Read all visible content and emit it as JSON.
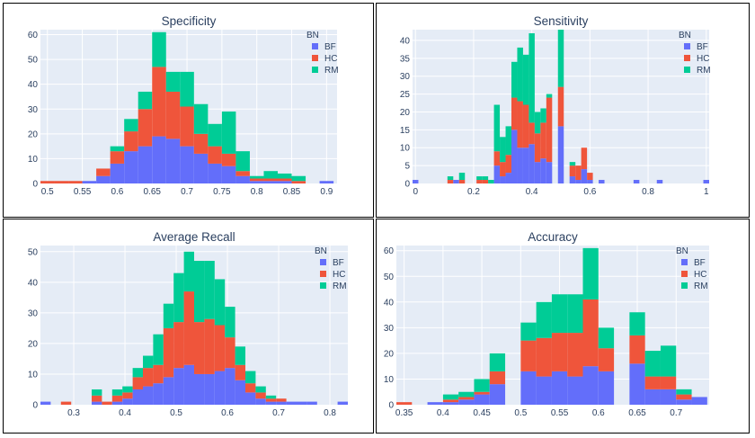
{
  "colors": {
    "BF": "#636efa",
    "HC": "#ef553b",
    "RM": "#00cc96",
    "plot_bg": "#e5ecf6",
    "grid": "#ffffff",
    "text": "#2a3f5f"
  },
  "chart_data": [
    {
      "type": "bar",
      "stacked": true,
      "title": "Specificity",
      "legend_title": "BN",
      "legend_position": "top-right",
      "xlim": [
        0.49,
        0.915
      ],
      "ylim": [
        0,
        62
      ],
      "xticks": [
        0.5,
        0.55,
        0.6,
        0.65,
        0.7,
        0.75,
        0.8,
        0.85,
        0.9
      ],
      "xticklabels": [
        "0.5",
        "0.55",
        "0.6",
        "0.65",
        "0.7",
        "0.75",
        "0.8",
        "0.85",
        "0.9"
      ],
      "yticks": [
        0,
        10,
        20,
        30,
        40,
        50,
        60
      ],
      "yticklabels": [
        "0",
        "10",
        "20",
        "30",
        "40",
        "50",
        "60"
      ],
      "bin_width": 0.02,
      "bins_start": [
        0.49,
        0.51,
        0.53,
        0.55,
        0.57,
        0.59,
        0.61,
        0.63,
        0.65,
        0.67,
        0.69,
        0.71,
        0.73,
        0.75,
        0.77,
        0.79,
        0.81,
        0.83,
        0.85,
        0.87,
        0.89
      ],
      "series": [
        {
          "name": "BF",
          "values": [
            0,
            0,
            0,
            1,
            3,
            8,
            13,
            15,
            19,
            18,
            15,
            12,
            8,
            7,
            3,
            1,
            1,
            1,
            0,
            0,
            1
          ]
        },
        {
          "name": "HC",
          "values": [
            1,
            1,
            1,
            0,
            3,
            5,
            8,
            15,
            28,
            19,
            16,
            8,
            7,
            5,
            2,
            1,
            1,
            1,
            1,
            0,
            0
          ]
        },
        {
          "name": "RM",
          "values": [
            0,
            0,
            0,
            0,
            0,
            2,
            5,
            7,
            14,
            8,
            14,
            12,
            9,
            17,
            8,
            1,
            3,
            2,
            2,
            0,
            0
          ]
        }
      ]
    },
    {
      "type": "bar",
      "stacked": true,
      "title": "Sensitivity",
      "legend_title": "BN",
      "legend_position": "top-right",
      "xlim": [
        -0.01,
        1.01
      ],
      "ylim": [
        0,
        43
      ],
      "xticks": [
        0,
        0.2,
        0.4,
        0.6,
        0.8,
        1
      ],
      "xticklabels": [
        "0",
        "0.2",
        "0.4",
        "0.6",
        "0.8",
        "1"
      ],
      "yticks": [
        0,
        5,
        10,
        15,
        20,
        25,
        30,
        35,
        40
      ],
      "yticklabels": [
        "0",
        "5",
        "10",
        "15",
        "20",
        "25",
        "30",
        "35",
        "40"
      ],
      "bin_width": 0.02,
      "bins_start": [
        -0.01,
        0.01,
        0.03,
        0.05,
        0.07,
        0.09,
        0.11,
        0.13,
        0.15,
        0.17,
        0.19,
        0.21,
        0.23,
        0.25,
        0.27,
        0.29,
        0.31,
        0.33,
        0.35,
        0.37,
        0.39,
        0.41,
        0.43,
        0.45,
        0.47,
        0.49,
        0.51,
        0.53,
        0.55,
        0.57,
        0.59,
        0.61,
        0.63,
        0.65,
        0.67,
        0.69,
        0.71,
        0.73,
        0.75,
        0.77,
        0.79,
        0.81,
        0.83,
        0.85,
        0.87,
        0.89,
        0.91,
        0.93,
        0.95,
        0.97,
        0.99
      ],
      "series": [
        {
          "name": "BF",
          "values": [
            1,
            0,
            0,
            0,
            0,
            0,
            0,
            1,
            0,
            0,
            0,
            0,
            0,
            0,
            5,
            2,
            3,
            15,
            10,
            10,
            11,
            6,
            7,
            6,
            0,
            16,
            0,
            2,
            1,
            4,
            1,
            0,
            1,
            0,
            0,
            0,
            0,
            0,
            1,
            0,
            0,
            0,
            1,
            0,
            0,
            0,
            0,
            0,
            0,
            0,
            1
          ]
        },
        {
          "name": "HC",
          "values": [
            0,
            0,
            0,
            0,
            0,
            0,
            1,
            0,
            1,
            0,
            0,
            1,
            1,
            0,
            4,
            4,
            5,
            9,
            13,
            12,
            6,
            8,
            10,
            18,
            0,
            11,
            0,
            3,
            4,
            6,
            2,
            0,
            0,
            0,
            0,
            0,
            0,
            0,
            0,
            0,
            0,
            0,
            0,
            0,
            0,
            0,
            0,
            0,
            0,
            0,
            0
          ]
        },
        {
          "name": "RM",
          "values": [
            0,
            0,
            0,
            0,
            0,
            0,
            1,
            0,
            2,
            0,
            0,
            1,
            1,
            1,
            13,
            7,
            8,
            10,
            15,
            14,
            25,
            6,
            4,
            1,
            0,
            16,
            0,
            1,
            0,
            0,
            0,
            0,
            0,
            0,
            0,
            0,
            0,
            0,
            0,
            0,
            0,
            0,
            0,
            0,
            0,
            0,
            0,
            0,
            0,
            0,
            0
          ]
        }
      ]
    },
    {
      "type": "bar",
      "stacked": true,
      "title": "Average Recall",
      "legend_title": "BN",
      "legend_position": "top-right",
      "xlim": [
        0.235,
        0.835
      ],
      "ylim": [
        0,
        52
      ],
      "xticks": [
        0.3,
        0.4,
        0.5,
        0.6,
        0.7,
        0.8
      ],
      "xticklabels": [
        "0.3",
        "0.4",
        "0.5",
        "0.6",
        "0.7",
        "0.8"
      ],
      "yticks": [
        0,
        10,
        20,
        30,
        40,
        50
      ],
      "yticklabels": [
        "0",
        "10",
        "20",
        "30",
        "40",
        "50"
      ],
      "bin_width": 0.02,
      "bins_start": [
        0.235,
        0.255,
        0.275,
        0.295,
        0.315,
        0.335,
        0.355,
        0.375,
        0.395,
        0.415,
        0.435,
        0.455,
        0.475,
        0.495,
        0.515,
        0.535,
        0.555,
        0.575,
        0.595,
        0.615,
        0.635,
        0.655,
        0.675,
        0.695,
        0.715,
        0.735,
        0.755,
        0.775,
        0.795,
        0.815
      ],
      "series": [
        {
          "name": "BF",
          "values": [
            1,
            0,
            0,
            0,
            0,
            1,
            0,
            1,
            2,
            5,
            6,
            7,
            9,
            12,
            13,
            10,
            10,
            11,
            12,
            8,
            4,
            2,
            1,
            1,
            1,
            1,
            1,
            0,
            0,
            1
          ]
        },
        {
          "name": "HC",
          "values": [
            0,
            0,
            1,
            0,
            0,
            2,
            1,
            2,
            2,
            4,
            6,
            6,
            16,
            15,
            24,
            17,
            18,
            15,
            10,
            5,
            3,
            2,
            1,
            1,
            0,
            0,
            0,
            0,
            0,
            0
          ]
        },
        {
          "name": "RM",
          "values": [
            0,
            0,
            0,
            0,
            0,
            2,
            0,
            2,
            2,
            3,
            4,
            10,
            8,
            16,
            13,
            20,
            19,
            15,
            10,
            6,
            4,
            2,
            1,
            0,
            0,
            0,
            0,
            0,
            0,
            0
          ]
        }
      ]
    },
    {
      "type": "bar",
      "stacked": true,
      "title": "Accuracy",
      "legend_title": "BN",
      "legend_position": "top-right",
      "xlim": [
        0.34,
        0.7425
      ],
      "ylim": [
        0,
        62
      ],
      "xticks": [
        0.35,
        0.4,
        0.45,
        0.5,
        0.55,
        0.6,
        0.65,
        0.7
      ],
      "xticklabels": [
        "0.35",
        "0.4",
        "0.45",
        "0.5",
        "0.55",
        "0.6",
        "0.65",
        "0.7"
      ],
      "yticks": [
        0,
        10,
        20,
        30,
        40,
        50,
        60
      ],
      "yticklabels": [
        "0",
        "10",
        "20",
        "30",
        "40",
        "50",
        "60"
      ],
      "bin_width": 0.02,
      "bins_start": [
        0.34,
        0.36,
        0.38,
        0.4,
        0.42,
        0.44,
        0.46,
        0.48,
        0.5,
        0.52,
        0.54,
        0.56,
        0.58,
        0.6,
        0.62,
        0.64,
        0.66,
        0.68,
        0.7,
        0.72
      ],
      "series": [
        {
          "name": "BF",
          "values": [
            0,
            0,
            1,
            1,
            2,
            4,
            8,
            0,
            13,
            11,
            13,
            11,
            15,
            13,
            0,
            16,
            6,
            6,
            2,
            3
          ]
        },
        {
          "name": "HC",
          "values": [
            1,
            0,
            0,
            1,
            1,
            1,
            5,
            0,
            12,
            15,
            15,
            17,
            26,
            9,
            0,
            11,
            5,
            5,
            2,
            0
          ]
        },
        {
          "name": "RM",
          "values": [
            0,
            0,
            0,
            2,
            2,
            5,
            7,
            0,
            7,
            14,
            15,
            15,
            20,
            8,
            0,
            9,
            10,
            12,
            2,
            0
          ]
        }
      ]
    }
  ]
}
